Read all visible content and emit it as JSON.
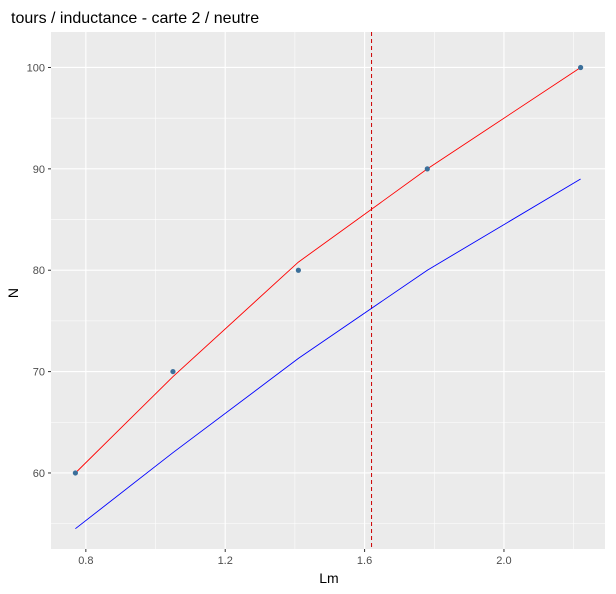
{
  "chart_data": {
    "type": "scatter",
    "title": "tours / inductance - carte 2 / neutre",
    "xlabel": "Lm",
    "ylabel": "N",
    "xlim": [
      0.7,
      2.29
    ],
    "ylim": [
      52.5,
      103.5
    ],
    "x_ticks": [
      "0.8",
      "1.2",
      "1.6",
      "2.0"
    ],
    "x_tick_values": [
      0.8,
      1.2,
      1.6,
      2.0
    ],
    "y_ticks": [
      "60",
      "70",
      "80",
      "90",
      "100"
    ],
    "y_tick_values": [
      60,
      70,
      80,
      90,
      100
    ],
    "grid": true,
    "series": [
      {
        "kind": "points",
        "color": "#3b6f9a",
        "x": [
          0.77,
          1.05,
          1.41,
          1.78,
          2.22
        ],
        "y": [
          60,
          70,
          80,
          90,
          100
        ]
      },
      {
        "kind": "line",
        "color": "#ff0000",
        "x": [
          0.77,
          1.05,
          1.41,
          1.78,
          2.22
        ],
        "y": [
          60,
          69.5,
          80.8,
          90,
          100
        ]
      },
      {
        "kind": "line",
        "color": "#0000ff",
        "x": [
          0.77,
          1.05,
          1.41,
          1.78,
          2.22
        ],
        "y": [
          54.5,
          62.0,
          71.3,
          80.0,
          89.0
        ]
      }
    ],
    "vline": {
      "x": 1.62,
      "color": "#cc0000",
      "style": "dashed"
    },
    "panel_color": "#ebebeb",
    "grid_color": "#ffffff"
  }
}
